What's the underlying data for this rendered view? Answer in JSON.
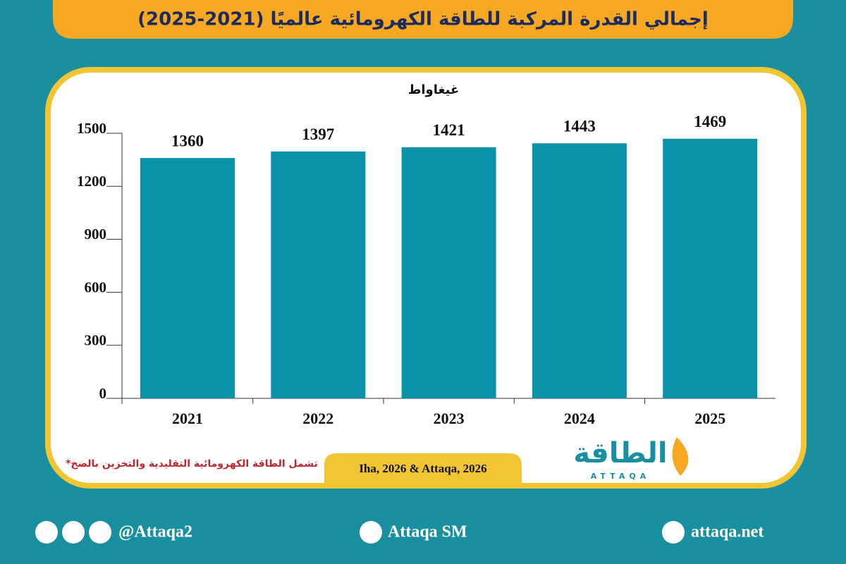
{
  "chart_data": {
    "type": "bar",
    "title": "إجمالي القدرة المركبة للطاقة الكهرومائية عالميًا (2021-2025)",
    "y_label": "غيغاواط",
    "categories": [
      "2021",
      "2022",
      "2023",
      "2024",
      "2025"
    ],
    "values": [
      1360,
      1397,
      1421,
      1443,
      1469
    ],
    "color": "#0a93a8",
    "ylim": [
      0,
      1500
    ],
    "yticks": [
      0,
      300,
      600,
      900,
      1200,
      1500
    ],
    "footnote": "*تشمل الطاقة الكهرومائية التقليدية والتخزين بالضخ",
    "source": "Iha, 2026 & Attaqa, 2026"
  },
  "logo": {
    "name": "الطاقة",
    "latin": "ATTAQA"
  },
  "footer": {
    "social": "@Attaqa2",
    "youtube": "Attaqa SM",
    "website": "attaqa.net"
  }
}
